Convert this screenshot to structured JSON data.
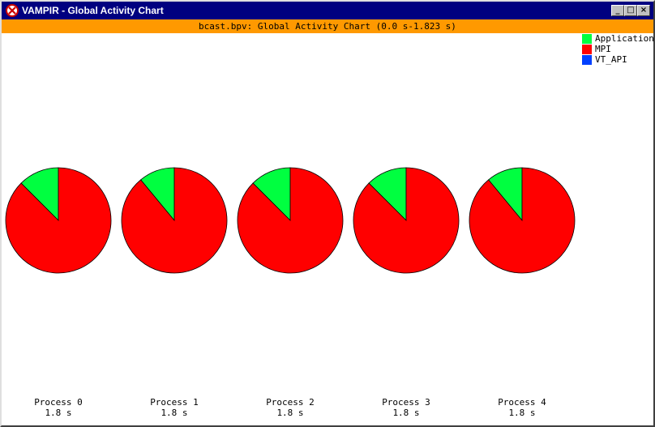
{
  "window": {
    "title": "VAMPIR - Global Activity Chart",
    "minimize_label": "_",
    "maximize_label": "□",
    "close_label": "×"
  },
  "subtitle": "bcast.bpv: Global Activity Chart (0.0 s-1.823 s)",
  "colors": {
    "titlebar": "#000080",
    "subtitle_bar": "#ff9900",
    "application": "#00ff40",
    "mpi": "#ff0000",
    "vt_api": "#0040ff"
  },
  "chart_data": {
    "type": "pie",
    "legend_position": "top-right",
    "legend": [
      {
        "label": "Application",
        "color": "#00ff40"
      },
      {
        "label": "MPI",
        "color": "#ff0000"
      },
      {
        "label": "VT_API",
        "color": "#0040ff"
      }
    ],
    "pies": [
      {
        "label": "Process 0",
        "total": "1.8 s",
        "slices": [
          {
            "name": "Application",
            "value": 0.125
          },
          {
            "name": "MPI",
            "value": 0.875
          },
          {
            "name": "VT_API",
            "value": 0
          }
        ]
      },
      {
        "label": "Process 1",
        "total": "1.8 s",
        "slices": [
          {
            "name": "Application",
            "value": 0.11
          },
          {
            "name": "MPI",
            "value": 0.89
          },
          {
            "name": "VT_API",
            "value": 0
          }
        ]
      },
      {
        "label": "Process 2",
        "total": "1.8 s",
        "slices": [
          {
            "name": "Application",
            "value": 0.125
          },
          {
            "name": "MPI",
            "value": 0.875
          },
          {
            "name": "VT_API",
            "value": 0
          }
        ]
      },
      {
        "label": "Process 3",
        "total": "1.8 s",
        "slices": [
          {
            "name": "Application",
            "value": 0.125
          },
          {
            "name": "MPI",
            "value": 0.875
          },
          {
            "name": "VT_API",
            "value": 0
          }
        ]
      },
      {
        "label": "Process 4",
        "total": "1.8 s",
        "slices": [
          {
            "name": "Application",
            "value": 0.11
          },
          {
            "name": "MPI",
            "value": 0.89
          },
          {
            "name": "VT_API",
            "value": 0
          }
        ]
      }
    ]
  }
}
